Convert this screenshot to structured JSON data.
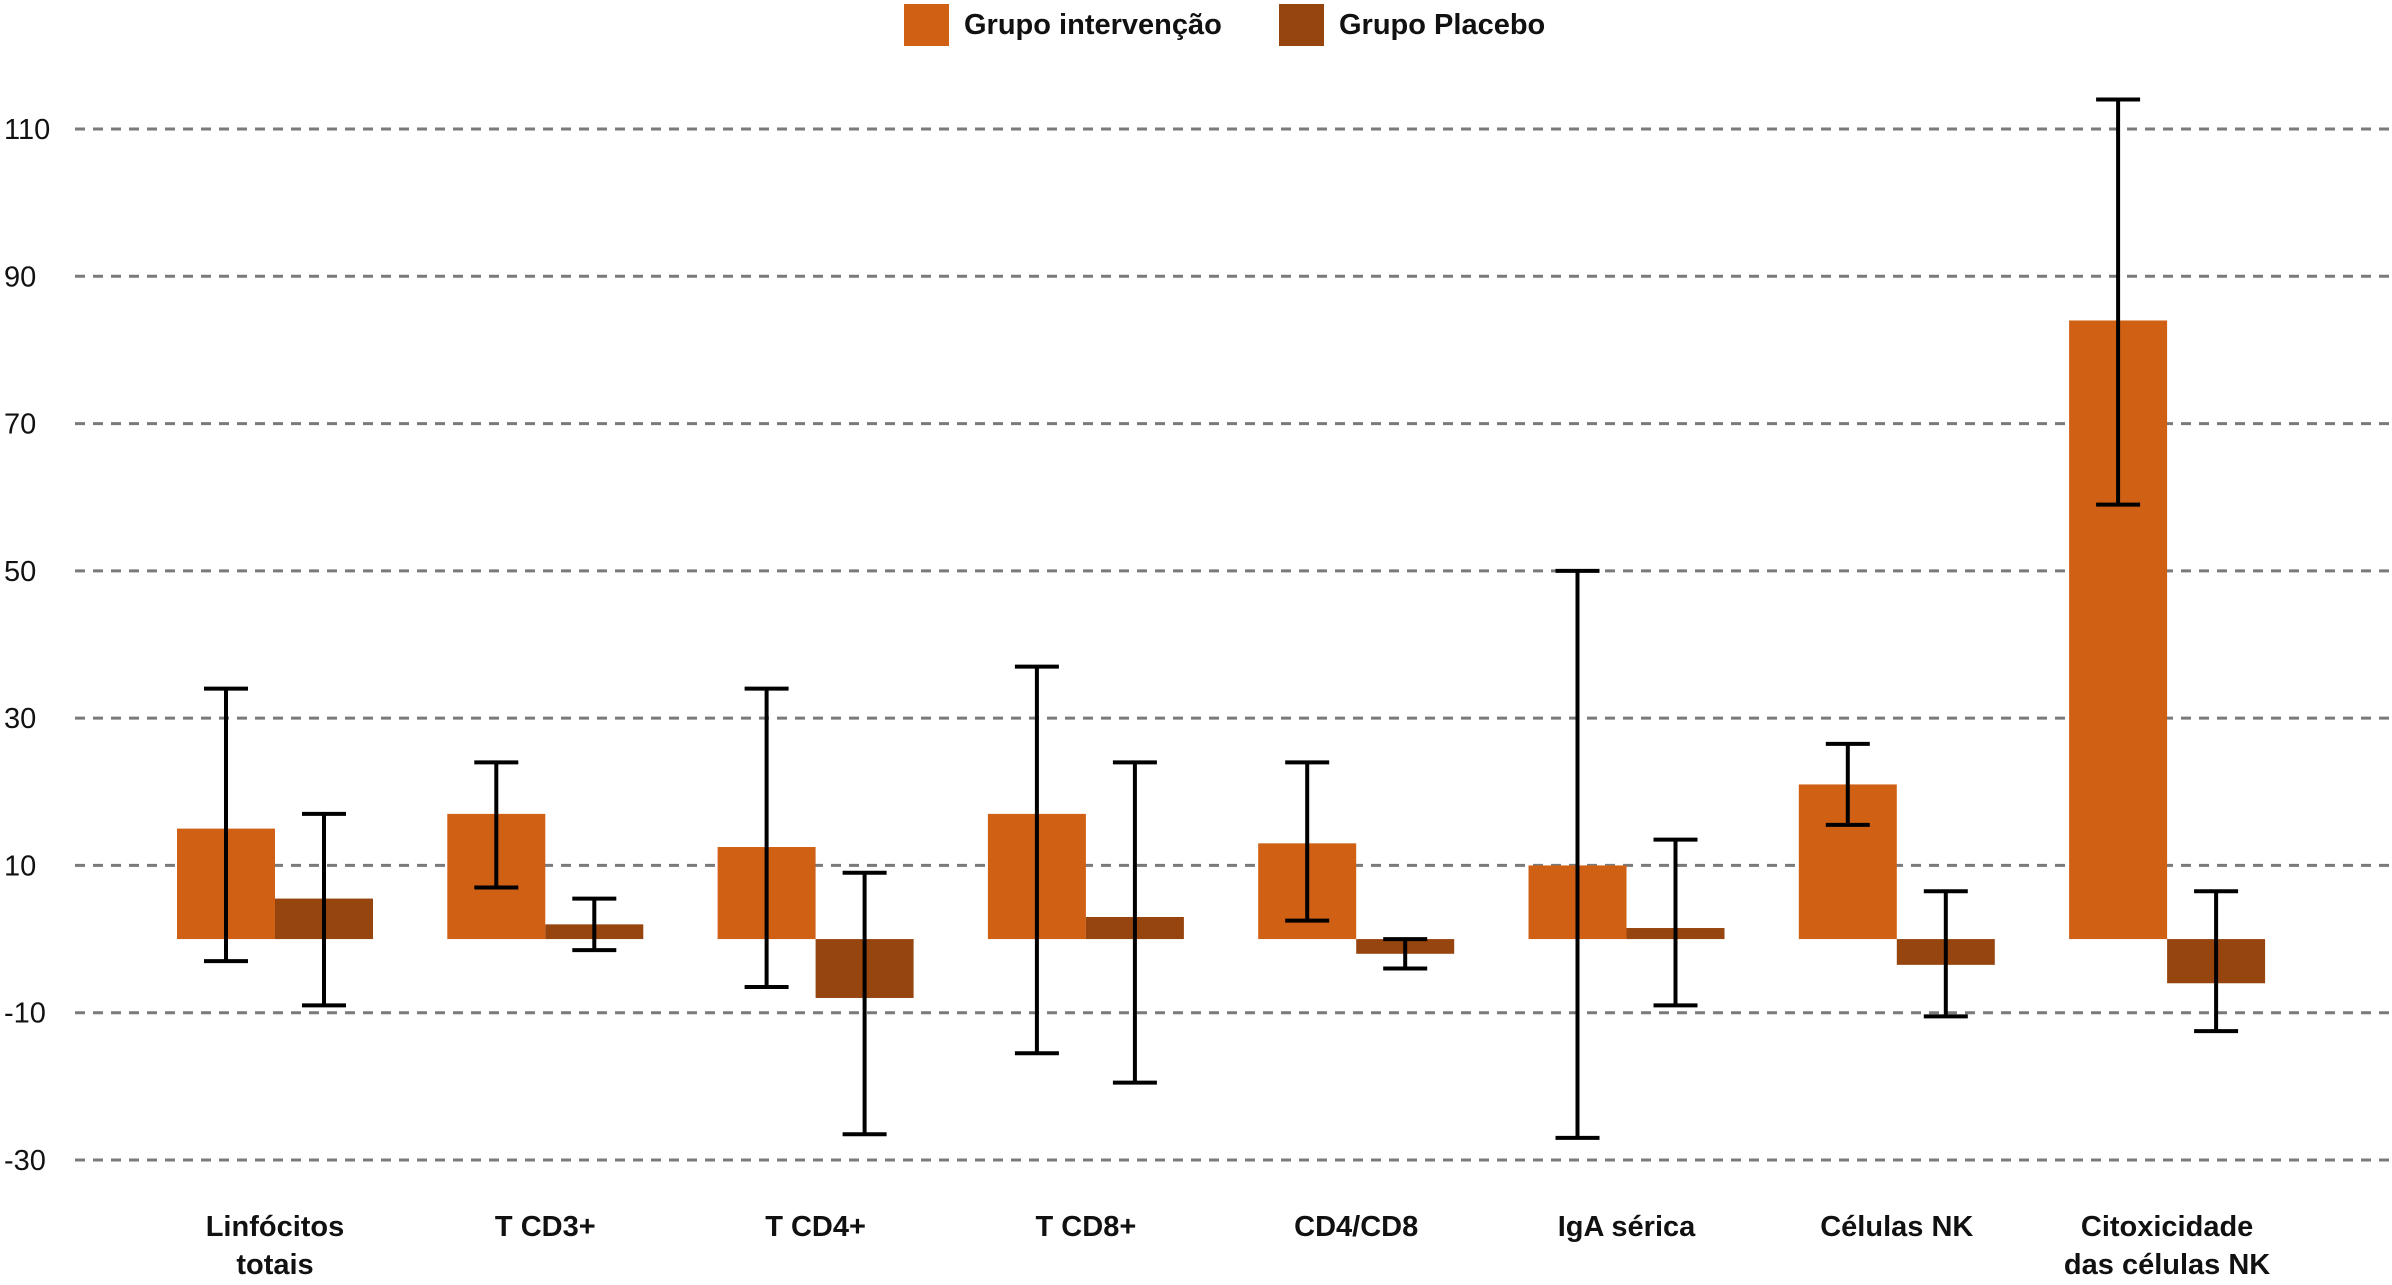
{
  "chart_data": {
    "type": "bar",
    "title": "",
    "xlabel": "",
    "ylabel": "",
    "ylim": [
      -30,
      110
    ],
    "yticks": [
      -30,
      -10,
      10,
      30,
      50,
      70,
      90,
      110
    ],
    "grid": true,
    "legend_position": "top-center",
    "categories": [
      [
        "Linfócitos",
        "totais"
      ],
      [
        "T CD3+"
      ],
      [
        "T CD4+"
      ],
      [
        "T CD8+"
      ],
      [
        "CD4/CD8"
      ],
      [
        "IgA sérica"
      ],
      [
        "Células NK"
      ],
      [
        "Citoxicidade",
        "das células NK"
      ]
    ],
    "series": [
      {
        "name": "Grupo intervenção",
        "color": "#d06114",
        "values": [
          15,
          17,
          12.5,
          17,
          13,
          10,
          21,
          84
        ],
        "err_low": [
          -3,
          7,
          -6.5,
          -15.5,
          2.5,
          -27,
          15.5,
          59
        ],
        "err_high": [
          34,
          24,
          34,
          37,
          24,
          50,
          26.5,
          114
        ]
      },
      {
        "name": "Grupo Placebo",
        "color": "#97450f",
        "values": [
          5.5,
          2,
          -8,
          3,
          -2,
          1.5,
          -3.5,
          -6
        ],
        "err_low": [
          -9,
          -1.5,
          -26.5,
          -19.5,
          -4,
          -9,
          -10.5,
          -12.5
        ],
        "err_high": [
          17,
          5.5,
          9,
          24,
          0,
          13.5,
          6.5,
          6.5
        ]
      }
    ]
  }
}
